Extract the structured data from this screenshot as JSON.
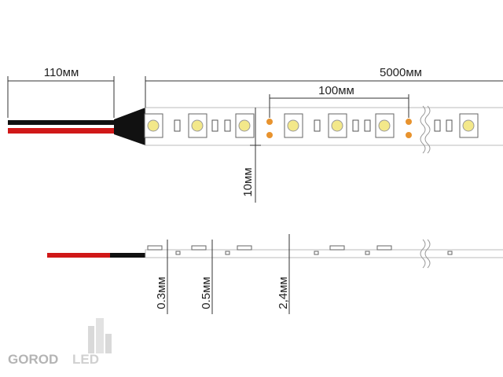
{
  "dimensions": {
    "wire_length": "110мм",
    "strip_length": "5000мм",
    "segment_length": "100мм",
    "strip_width": "10мм",
    "base_thickness": "0.3мм",
    "copper_thickness": "0.5мм",
    "total_thickness": "2,4мм"
  },
  "logo": {
    "part1": "GOROD",
    "part2": "LED"
  }
}
